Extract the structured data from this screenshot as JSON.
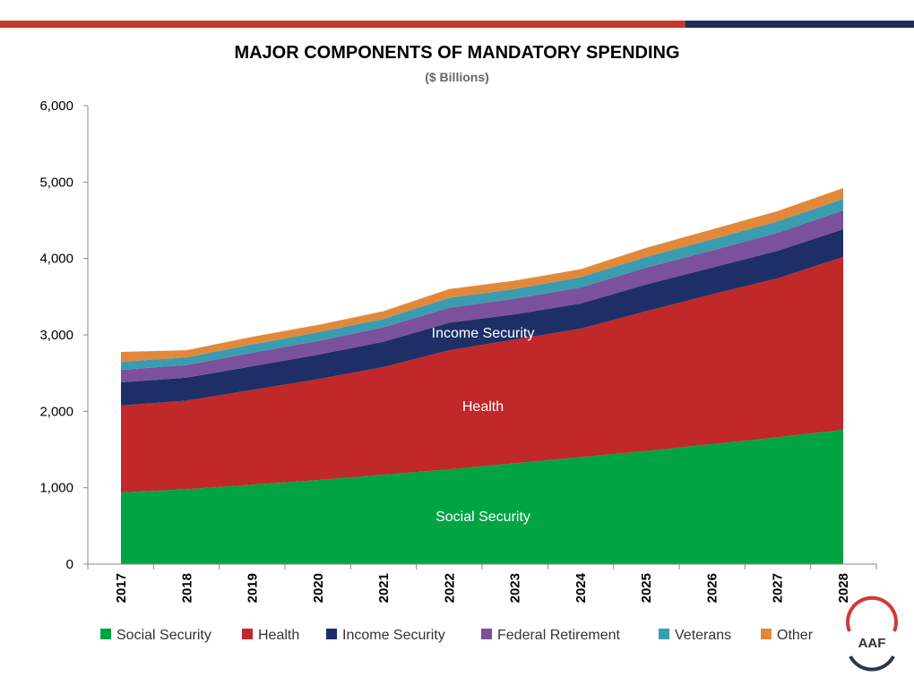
{
  "colors": {
    "bar_red": "#c0392b",
    "bar_navy": "#1f2f5c"
  },
  "logo": {
    "text": "AAF",
    "arc_top": "#d0393a",
    "arc_bottom": "#2a3550"
  },
  "chart_data": {
    "type": "area",
    "stacked": true,
    "title": "MAJOR COMPONENTS OF MANDATORY SPENDING",
    "subtitle": "($ Billions)",
    "xlabel": "",
    "ylabel": "",
    "ylim": [
      0,
      6000
    ],
    "yticks": [
      0,
      1000,
      2000,
      3000,
      4000,
      5000,
      6000
    ],
    "ytick_labels": [
      "0",
      "1,000",
      "2,000",
      "3,000",
      "4,000",
      "5,000",
      "6,000"
    ],
    "grid": false,
    "legend": "bottom",
    "categories": [
      "2017",
      "2018",
      "2019",
      "2020",
      "2021",
      "2022",
      "2023",
      "2024",
      "2025",
      "2026",
      "2027",
      "2028"
    ],
    "series": [
      {
        "name": "Social Security",
        "color": "#00a443",
        "label": "Social Security",
        "values": [
          937,
          980,
          1040,
          1100,
          1170,
          1240,
          1320,
          1400,
          1480,
          1570,
          1660,
          1758
        ]
      },
      {
        "name": "Health",
        "color": "#c0282a",
        "label": "Health",
        "values": [
          1137,
          1160,
          1240,
          1320,
          1410,
          1560,
          1620,
          1680,
          1830,
          1960,
          2080,
          2262
        ]
      },
      {
        "name": "Income Security",
        "color": "#1d2f66",
        "label": "Income Security",
        "values": [
          305,
          300,
          310,
          320,
          330,
          360,
          330,
          330,
          350,
          350,
          360,
          363
        ]
      },
      {
        "name": "Federal Retirement",
        "color": "#7a519a",
        "label": "",
        "values": [
          164,
          165,
          175,
          180,
          190,
          195,
          205,
          210,
          220,
          225,
          235,
          246
        ]
      },
      {
        "name": "Veterans",
        "color": "#3a9cb0",
        "label": "",
        "values": [
          105,
          100,
          110,
          115,
          110,
          130,
          125,
          135,
          140,
          145,
          150,
          152
        ]
      },
      {
        "name": "Other",
        "color": "#e2883a",
        "label": "",
        "values": [
          129,
          95,
          100,
          95,
          100,
          115,
          110,
          105,
          120,
          130,
          135,
          141
        ]
      }
    ]
  }
}
